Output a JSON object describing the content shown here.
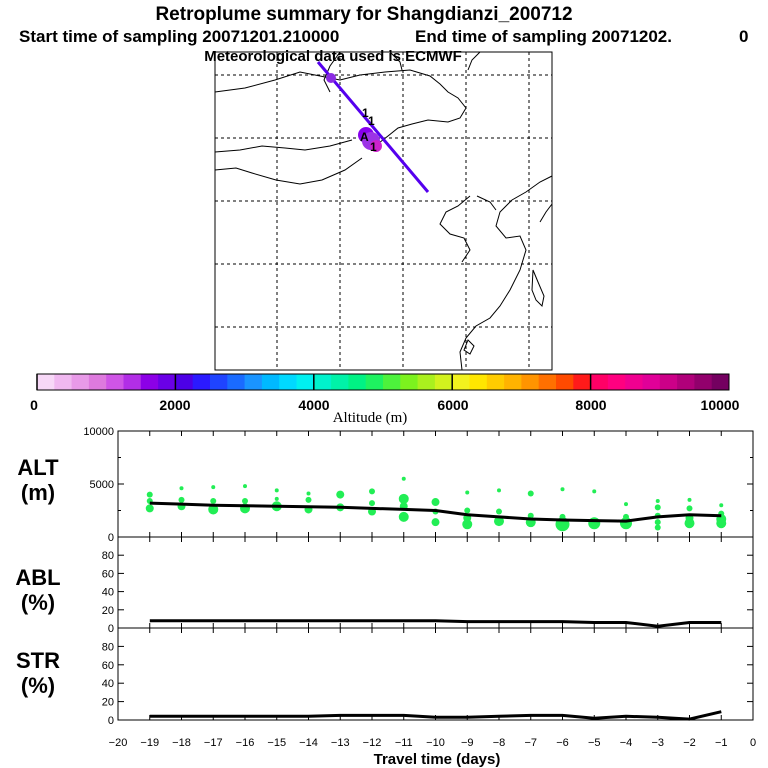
{
  "title": {
    "line1": "Retroplume summary for Shangdianzi_200712",
    "start": "Start time of sampling 20071201.210000",
    "end": "End time of sampling 20071202.",
    "end_suffix": "0",
    "line3": "Meteorological data used is ECMWF"
  },
  "map": {
    "plume_markers": [
      "1",
      "1",
      "A",
      "1"
    ],
    "line_color": "#5500ee"
  },
  "colorbar": {
    "title": "Altitude (m)",
    "ticks": [
      "0",
      "2000",
      "4000",
      "6000",
      "8000",
      "10000"
    ],
    "min": 0,
    "max": 10000,
    "colors": [
      "#f7d8f7",
      "#f0b8f0",
      "#e89ae8",
      "#de7ade",
      "#cf55e6",
      "#b22ee6",
      "#8c00e6",
      "#6a00e6",
      "#4d00e6",
      "#2b1aff",
      "#1f44ff",
      "#1a6bff",
      "#1a94ff",
      "#00b9ff",
      "#00d9ff",
      "#00f0f0",
      "#00f2cc",
      "#00f2a8",
      "#00f284",
      "#1ef260",
      "#4df23c",
      "#7cf21e",
      "#aaf01e",
      "#d2f21e",
      "#f2f21e",
      "#ffe600",
      "#ffcc00",
      "#ffb300",
      "#ff9400",
      "#ff7000",
      "#ff4a00",
      "#ff1a1a",
      "#ff0066",
      "#ff0080",
      "#f00090",
      "#e00098",
      "#cc0088",
      "#b0007a",
      "#92006c",
      "#740060"
    ]
  },
  "chart_data": [
    {
      "type": "scatter",
      "name": "ALT",
      "ylabel": "ALT",
      "yunit": "(m)",
      "ylim": [
        0,
        10000
      ],
      "yticks": [
        "10000",
        "5000",
        "0"
      ],
      "xlim": [
        -20,
        0
      ],
      "line_x": [
        -19,
        -18,
        -17,
        -16,
        -15,
        -14,
        -13,
        -12,
        -11,
        -10,
        -9,
        -8,
        -7,
        -6,
        -5,
        -4,
        -3,
        -2,
        -1
      ],
      "line_y": [
        3200,
        3100,
        3000,
        2950,
        2900,
        2850,
        2800,
        2700,
        2600,
        2500,
        2100,
        1900,
        1700,
        1600,
        1550,
        1500,
        1900,
        2100,
        2000
      ],
      "points": [
        {
          "x": -19,
          "y": 4000,
          "r": 3
        },
        {
          "x": -19,
          "y": 3400,
          "r": 3
        },
        {
          "x": -19,
          "y": 2700,
          "r": 4
        },
        {
          "x": -18,
          "y": 4600,
          "r": 2
        },
        {
          "x": -18,
          "y": 3500,
          "r": 3
        },
        {
          "x": -18,
          "y": 2900,
          "r": 4
        },
        {
          "x": -17,
          "y": 4700,
          "r": 2
        },
        {
          "x": -17,
          "y": 3400,
          "r": 3
        },
        {
          "x": -17,
          "y": 2600,
          "r": 5
        },
        {
          "x": -16,
          "y": 4800,
          "r": 2
        },
        {
          "x": -16,
          "y": 3400,
          "r": 3
        },
        {
          "x": -16,
          "y": 2700,
          "r": 5
        },
        {
          "x": -15,
          "y": 4400,
          "r": 2
        },
        {
          "x": -15,
          "y": 3600,
          "r": 2
        },
        {
          "x": -15,
          "y": 2900,
          "r": 5
        },
        {
          "x": -14,
          "y": 4100,
          "r": 2
        },
        {
          "x": -14,
          "y": 3500,
          "r": 3
        },
        {
          "x": -14,
          "y": 2600,
          "r": 4
        },
        {
          "x": -13,
          "y": 4000,
          "r": 4
        },
        {
          "x": -13,
          "y": 2800,
          "r": 4
        },
        {
          "x": -12,
          "y": 4300,
          "r": 3
        },
        {
          "x": -12,
          "y": 3200,
          "r": 3
        },
        {
          "x": -12,
          "y": 2400,
          "r": 4
        },
        {
          "x": -11,
          "y": 5500,
          "r": 2
        },
        {
          "x": -11,
          "y": 3600,
          "r": 5
        },
        {
          "x": -11,
          "y": 2900,
          "r": 4
        },
        {
          "x": -11,
          "y": 1900,
          "r": 5
        },
        {
          "x": -10,
          "y": 3300,
          "r": 4
        },
        {
          "x": -10,
          "y": 2400,
          "r": 3
        },
        {
          "x": -10,
          "y": 1400,
          "r": 4
        },
        {
          "x": -9,
          "y": 4200,
          "r": 2
        },
        {
          "x": -9,
          "y": 2500,
          "r": 3
        },
        {
          "x": -9,
          "y": 1800,
          "r": 4
        },
        {
          "x": -9,
          "y": 1200,
          "r": 5
        },
        {
          "x": -8,
          "y": 4400,
          "r": 2
        },
        {
          "x": -8,
          "y": 2400,
          "r": 3
        },
        {
          "x": -8,
          "y": 1500,
          "r": 5
        },
        {
          "x": -7,
          "y": 4100,
          "r": 3
        },
        {
          "x": -7,
          "y": 2000,
          "r": 3
        },
        {
          "x": -7,
          "y": 1400,
          "r": 5
        },
        {
          "x": -6,
          "y": 4500,
          "r": 2
        },
        {
          "x": -6,
          "y": 1900,
          "r": 3
        },
        {
          "x": -6,
          "y": 1200,
          "r": 7
        },
        {
          "x": -5,
          "y": 4300,
          "r": 2
        },
        {
          "x": -5,
          "y": 1300,
          "r": 6
        },
        {
          "x": -4,
          "y": 3100,
          "r": 2
        },
        {
          "x": -4,
          "y": 1900,
          "r": 3
        },
        {
          "x": -4,
          "y": 1300,
          "r": 6
        },
        {
          "x": -3,
          "y": 3400,
          "r": 2
        },
        {
          "x": -3,
          "y": 2800,
          "r": 3
        },
        {
          "x": -3,
          "y": 2000,
          "r": 3
        },
        {
          "x": -3,
          "y": 1400,
          "r": 3
        },
        {
          "x": -3,
          "y": 900,
          "r": 3
        },
        {
          "x": -2,
          "y": 3500,
          "r": 2
        },
        {
          "x": -2,
          "y": 2700,
          "r": 3
        },
        {
          "x": -2,
          "y": 1800,
          "r": 4
        },
        {
          "x": -2,
          "y": 1300,
          "r": 5
        },
        {
          "x": -1,
          "y": 3000,
          "r": 2
        },
        {
          "x": -1,
          "y": 2200,
          "r": 3
        },
        {
          "x": -1,
          "y": 1700,
          "r": 5
        },
        {
          "x": -1,
          "y": 1300,
          "r": 5
        }
      ]
    },
    {
      "type": "line",
      "name": "ABL",
      "ylabel": "ABL",
      "yunit": "(%)",
      "ylim": [
        0,
        100
      ],
      "yticks": [
        "80",
        "60",
        "40",
        "20",
        "0"
      ],
      "x": [
        -19,
        -18,
        -17,
        -16,
        -15,
        -14,
        -13,
        -12,
        -11,
        -10,
        -9,
        -8,
        -7,
        -6,
        -5,
        -4,
        -3,
        -2,
        -1
      ],
      "y": [
        8,
        8,
        8,
        8,
        8,
        8,
        8,
        8,
        8,
        8,
        7,
        7,
        7,
        7,
        6,
        6,
        2,
        6,
        6
      ]
    },
    {
      "type": "line",
      "name": "STR",
      "ylabel": "STR",
      "yunit": "(%)",
      "ylim": [
        0,
        100
      ],
      "yticks": [
        "80",
        "60",
        "40",
        "20",
        "0"
      ],
      "x": [
        -19,
        -18,
        -17,
        -16,
        -15,
        -14,
        -13,
        -12,
        -11,
        -10,
        -9,
        -8,
        -7,
        -6,
        -5,
        -4,
        -3,
        -2,
        -1
      ],
      "y": [
        4,
        4,
        4,
        4,
        4,
        4,
        5,
        5,
        5,
        3,
        3,
        4,
        5,
        5,
        2,
        4,
        3,
        1,
        9
      ],
      "xlabel": "Travel time (days)",
      "xticks": [
        "−20",
        "−19",
        "−18",
        "−17",
        "−16",
        "−15",
        "−14",
        "−13",
        "−12",
        "−11",
        "−10",
        "−9",
        "−8",
        "−7",
        "−6",
        "−5",
        "−4",
        "−3",
        "−2",
        "−1",
        "0"
      ]
    }
  ]
}
